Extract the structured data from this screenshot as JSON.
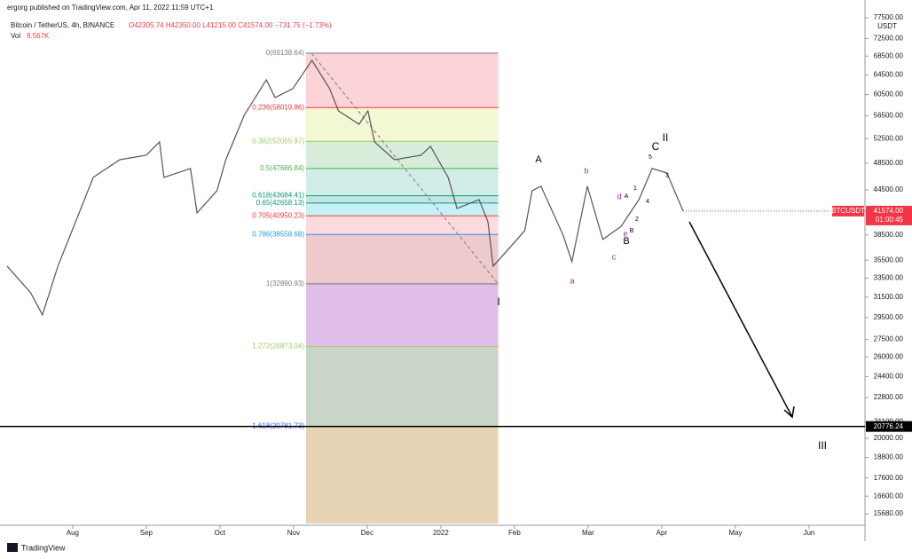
{
  "header": {
    "published": "ergorg published on TradingView.com, Apr 11, 2022 11:59 UTC+1",
    "symbol": "Bitcoin / TetherUS, 4h, BINANCE",
    "ohlc": "O42305.74  H42350.00  L41215.00  C41574.00  −731.75 (−1.73%)",
    "volume_label": "Vol",
    "volume": "9.567K"
  },
  "footer": {
    "brand": "TradingView"
  },
  "chart_data": {
    "type": "line",
    "log_scale": true,
    "color": "#555555",
    "currency": "USDT",
    "ylim": [
      15200,
      80200
    ],
    "yticks": [
      {
        "value": 77500,
        "label": "77500.00"
      },
      {
        "value": 72500,
        "label": "72500.00"
      },
      {
        "value": 68500,
        "label": "68500.00"
      },
      {
        "value": 64500,
        "label": "64500.00"
      },
      {
        "value": 60500,
        "label": "60500.00"
      },
      {
        "value": 56500,
        "label": "56500.00"
      },
      {
        "value": 52500,
        "label": "52500.00"
      },
      {
        "value": 48500,
        "label": "48500.00"
      },
      {
        "value": 44500,
        "label": "44500.00"
      },
      {
        "value": 38500,
        "label": "38500.00"
      },
      {
        "value": 35500,
        "label": "35500.00"
      },
      {
        "value": 33500,
        "label": "33500.00"
      },
      {
        "value": 31500,
        "label": "31500.00"
      },
      {
        "value": 29500,
        "label": "29500.00"
      },
      {
        "value": 27500,
        "label": "27500.00"
      },
      {
        "value": 26000,
        "label": "26000.00"
      },
      {
        "value": 24400,
        "label": "24400.00"
      },
      {
        "value": 22800,
        "label": "22800.00"
      },
      {
        "value": 21100,
        "label": "21100.00"
      },
      {
        "value": 20000,
        "label": "20000.00"
      },
      {
        "value": 18800,
        "label": "18800.00"
      },
      {
        "value": 17600,
        "label": "17600.00"
      },
      {
        "value": 16600,
        "label": "16600.00"
      },
      {
        "value": 15680,
        "label": "15680.00"
      }
    ],
    "xlim": [
      -0.89,
      10.76
    ],
    "xticks": [
      {
        "value": 0,
        "label": "Aug"
      },
      {
        "value": 1,
        "label": "Sep"
      },
      {
        "value": 2,
        "label": "Oct"
      },
      {
        "value": 3,
        "label": "Nov"
      },
      {
        "value": 4,
        "label": "Dec"
      },
      {
        "value": 5,
        "label": "2022"
      },
      {
        "value": 6,
        "label": "Feb"
      },
      {
        "value": 7,
        "label": "Mar"
      },
      {
        "value": 8,
        "label": "Apr"
      },
      {
        "value": 9,
        "label": "May"
      },
      {
        "value": 10,
        "label": "Jun"
      }
    ],
    "x": [
      -0.89,
      -0.57,
      -0.41,
      -0.2,
      0.04,
      0.28,
      0.64,
      1.0,
      1.18,
      1.24,
      1.6,
      1.69,
      1.96,
      2.08,
      2.33,
      2.63,
      2.75,
      2.99,
      3.25,
      3.49,
      3.61,
      3.89,
      4.01,
      4.1,
      4.37,
      4.73,
      4.86,
      5.1,
      5.22,
      5.52,
      5.64,
      5.71,
      5.82,
      6.14,
      6.24,
      6.36,
      6.66,
      6.78,
      6.99,
      7.2,
      7.45,
      7.69,
      7.87,
      8.07,
      8.29
    ],
    "values": [
      34820,
      31960,
      29760,
      34820,
      40170,
      46340,
      49060,
      49770,
      51950,
      46340,
      47690,
      41340,
      44400,
      49060,
      56600,
      63450,
      59930,
      61670,
      67560,
      61670,
      57410,
      55000,
      57410,
      51950,
      49060,
      49770,
      51210,
      46340,
      41930,
      43140,
      40170,
      34820,
      35830,
      39040,
      44400,
      45040,
      38490,
      35330,
      45040,
      37940,
      39600,
      43140,
      47690,
      47010,
      41574
    ],
    "last_price": {
      "symbol": "BTCUSDT",
      "value": 41574,
      "label": "41574.00",
      "countdown": "01:00:45",
      "color": "#f23645"
    },
    "hline": {
      "value": 20776.24,
      "label": "20776.24",
      "color": "#000000"
    },
    "fib": {
      "x_range": [
        3.17,
        5.78
      ],
      "levels": [
        {
          "price": 69138.64,
          "label": "0(69138.64)",
          "color": "#787b86",
          "fill": "rgba(242,54,69,0.22)"
        },
        {
          "price": 58019.86,
          "label": "0.236(58019.86)",
          "color": "#f23645",
          "fill": "rgba(205,220,57,0.22)"
        },
        {
          "price": 52055.97,
          "label": "0.382(52055.97)",
          "color": "#9ccc65",
          "fill": "rgba(76,175,80,0.22)"
        },
        {
          "price": 47686.84,
          "label": "0.5(47686.84)",
          "color": "#4caf50",
          "fill": "rgba(8,153,129,0.18)"
        },
        {
          "price": 43684.41,
          "label": "0.618(43684.41)",
          "color": "#089981",
          "fill": "rgba(8,153,129,0.25)"
        },
        {
          "price": 42658.13,
          "label": "0.65(42658.13)",
          "color": "#089981",
          "fill": "rgba(0,188,212,0.22)"
        },
        {
          "price": 40950.23,
          "label": "0.705(40950.23)",
          "color": "#f23645",
          "fill": "rgba(242,54,69,0.18)"
        },
        {
          "price": 38558.68,
          "label": "0.786(38558.68)",
          "color": "#2196f3",
          "fill": "rgba(200,80,90,0.3)"
        },
        {
          "price": 32890.93,
          "label": "1(32890.93)",
          "color": "#787b86",
          "fill": "rgba(156,39,176,0.3)"
        },
        {
          "price": 26873.04,
          "label": "1.272(26873.04)",
          "color": "#9ccc65",
          "fill": "rgba(120,150,120,0.4)"
        },
        {
          "price": 20781.73,
          "label": "1.618(20781.73)",
          "color": "#2962ff",
          "fill": "rgba(200,160,90,0.45)"
        }
      ]
    },
    "waves": [
      {
        "text": "A",
        "color": "#000000"
      },
      {
        "text": "B",
        "color": "#000000"
      },
      {
        "text": "C",
        "color": "#000000"
      },
      {
        "text": "II",
        "color": "#000000"
      },
      {
        "text": "I",
        "color": "#000000"
      },
      {
        "text": "III",
        "color": "#000000"
      },
      {
        "text": "a",
        "color": "#9c27b0"
      },
      {
        "text": "b",
        "color": "#9c27b0"
      },
      {
        "text": "c",
        "color": "#9c27b0"
      },
      {
        "text": "d",
        "color": "#9c27b0"
      },
      {
        "text": "e",
        "color": "#9c27b0"
      },
      {
        "text": "1",
        "color": "#000000"
      },
      {
        "text": "2",
        "color": "#000000"
      },
      {
        "text": "3",
        "color": "#000000"
      },
      {
        "text": "4",
        "color": "#000000"
      },
      {
        "text": "5",
        "color": "#000000"
      },
      {
        "text": "A",
        "color": "#000000"
      },
      {
        "text": "B",
        "color": "#000000"
      }
    ]
  }
}
